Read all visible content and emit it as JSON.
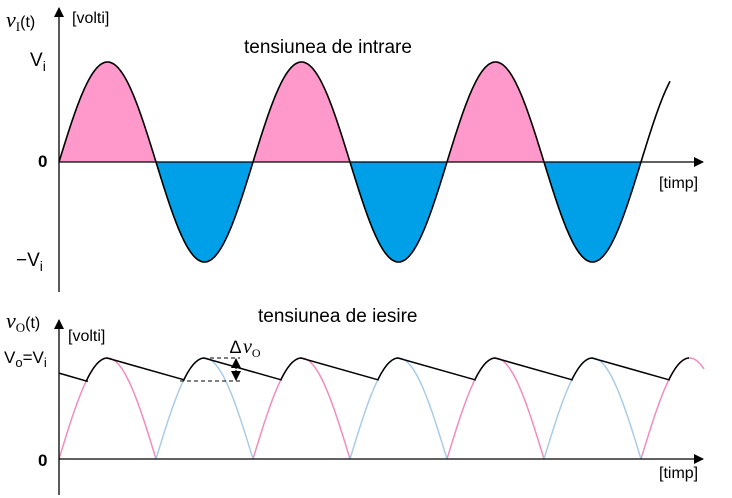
{
  "chart_data": [
    {
      "type": "area",
      "title": "tensiunea de intrare",
      "ylabel_var": "v",
      "ylabel_sub": "I",
      "ylabel_arg": "(t)",
      "yunit": "[volti]",
      "xunit": "[timp]",
      "ytick_pos": "V",
      "ytick_pos_sub": "i",
      "ytick_zero": "0",
      "ytick_neg": "−V",
      "ytick_neg_sub": "i",
      "amplitude": 1,
      "cycles_shown": 3.15,
      "series": [
        {
          "type": "positive-half",
          "color": "#ff99cc"
        },
        {
          "type": "negative-half",
          "color": "#00a0e8"
        }
      ]
    },
    {
      "type": "line",
      "title": "tensiunea de iesire",
      "ylabel_var": "v",
      "ylabel_sub": "O",
      "ylabel_arg": "(t)",
      "yunit": "[volti]",
      "xunit": "[timp]",
      "ytick_peak": "V",
      "ytick_peak_sub": "o",
      "ytick_peak_eq": "=V",
      "ytick_peak_eq_sub": "i",
      "ytick_zero": "0",
      "ripple_label": "∆",
      "ripple_var": "v",
      "ripple_sub": "O",
      "ripple_min_fraction": 0.78,
      "series": [
        {
          "type": "rectified-pink",
          "color": "#f08cc0"
        },
        {
          "type": "rectified-blue",
          "color": "#a8cce8"
        },
        {
          "type": "output-envelope",
          "color": "#000000"
        }
      ]
    }
  ]
}
